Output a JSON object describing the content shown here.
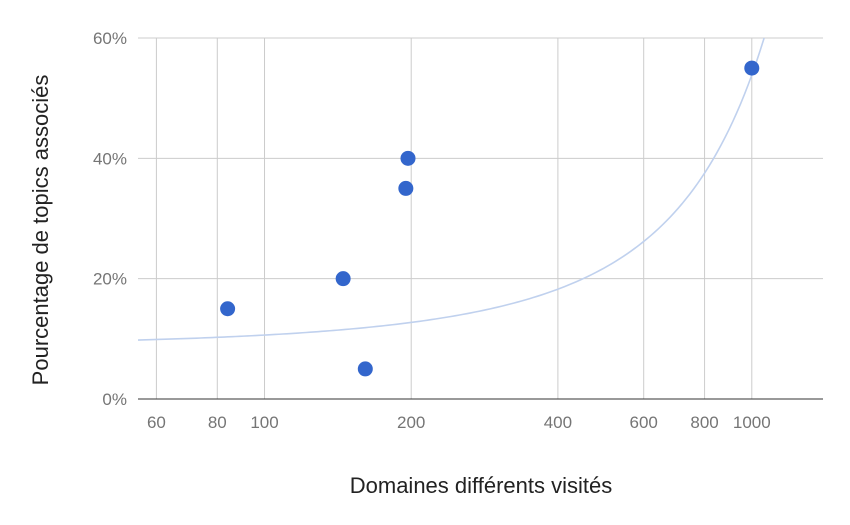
{
  "chart_data": {
    "type": "scatter",
    "xlabel": "Domaines différents visités",
    "ylabel": "Pourcentage de topics associés",
    "x_scale": "log",
    "xlim": [
      55,
      1400
    ],
    "ylim": [
      0,
      60
    ],
    "x_ticks": [
      {
        "value": 60,
        "label": "60"
      },
      {
        "value": 80,
        "label": "80"
      },
      {
        "value": 100,
        "label": "100"
      },
      {
        "value": 200,
        "label": "200"
      },
      {
        "value": 400,
        "label": "400"
      },
      {
        "value": 600,
        "label": "600"
      },
      {
        "value": 800,
        "label": "800"
      },
      {
        "value": 1000,
        "label": "1000"
      }
    ],
    "y_ticks": [
      {
        "value": 0,
        "label": "0%"
      },
      {
        "value": 20,
        "label": "20%"
      },
      {
        "value": 40,
        "label": "40%"
      },
      {
        "value": 60,
        "label": "60%"
      }
    ],
    "series": [
      {
        "points": [
          {
            "x": 84,
            "y": 15
          },
          {
            "x": 145,
            "y": 20
          },
          {
            "x": 161,
            "y": 5
          },
          {
            "x": 195,
            "y": 35
          },
          {
            "x": 197,
            "y": 40
          },
          {
            "x": 1000,
            "y": 55
          }
        ],
        "color": "#3366cc"
      }
    ],
    "trendline": {
      "type": "exponential",
      "x_range": [
        55,
        1060
      ],
      "y_at_start": 9.8,
      "y_at_end": 60,
      "color": "#c0d1ee"
    },
    "grid": true,
    "legend": "none"
  }
}
